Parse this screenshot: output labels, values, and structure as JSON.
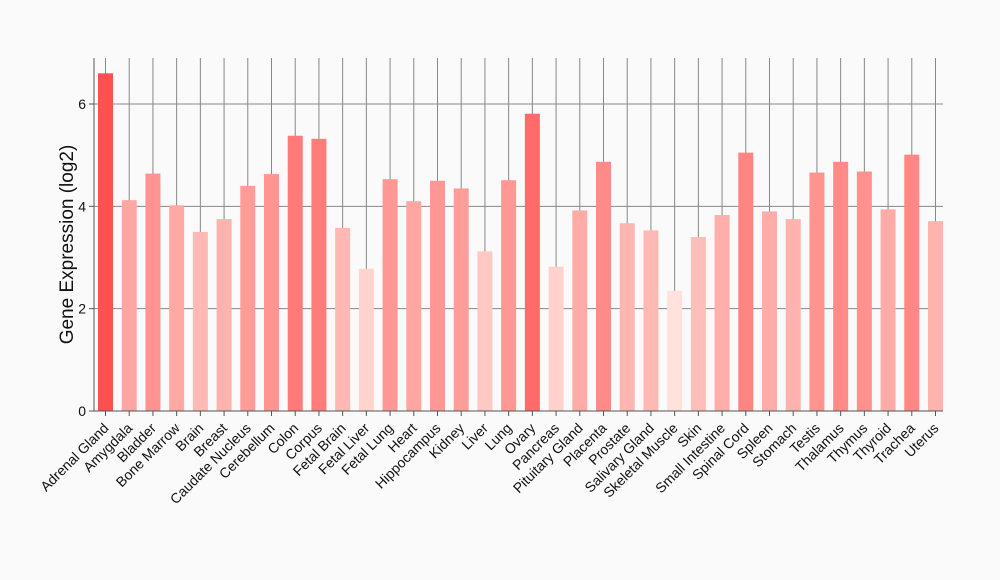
{
  "chart_data": {
    "type": "bar",
    "title": "",
    "xlabel": "",
    "ylabel": "Gene Expression (log2)",
    "ylim": [
      0,
      6.9
    ],
    "yticks": [
      0,
      2,
      4,
      6
    ],
    "grid": true,
    "categories": [
      "Adrenal Gland",
      "Amygdala",
      "Bladder",
      "Bone Marrow",
      "Brain",
      "Breast",
      "Caudate Nucleus",
      "Cerebellum",
      "Colon",
      "Corpus",
      "Fetal Brain",
      "Fetal Liver",
      "Fetal Lung",
      "Heart",
      "Hippocampus",
      "Kidney",
      "Liver",
      "Lung",
      "Ovary",
      "Pancreas",
      "Pituitary Gland",
      "Placenta",
      "Prostate",
      "Salivary Gland",
      "Skeletal Muscle",
      "Skin",
      "Small Intestine",
      "Spinal Cord",
      "Spleen",
      "Stomach",
      "Testis",
      "Thalamus",
      "Thymus",
      "Thyroid",
      "Trachea",
      "Uterus"
    ],
    "values": [
      6.6,
      4.12,
      4.64,
      4.02,
      3.5,
      3.75,
      4.4,
      4.63,
      5.38,
      5.32,
      3.58,
      2.78,
      4.53,
      4.1,
      4.5,
      4.35,
      3.12,
      4.51,
      5.81,
      2.82,
      3.92,
      4.87,
      3.67,
      3.53,
      2.35,
      3.4,
      3.83,
      5.05,
      3.9,
      3.75,
      4.66,
      4.87,
      4.68,
      3.94,
      5.01,
      3.71
    ]
  }
}
